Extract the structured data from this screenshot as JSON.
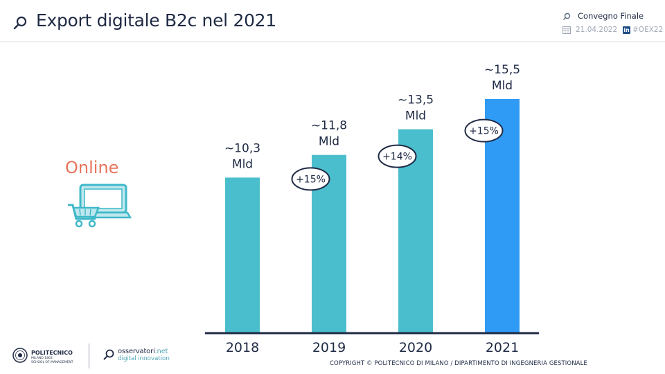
{
  "header": {
    "title": "Export digitale B2c nel 2021",
    "event": "Convegno Finale",
    "date": "21.04.2022",
    "linkedin": "in",
    "hashtag": "#OEX22"
  },
  "side": {
    "label": "Online",
    "icon": "laptop-shopping-cart-icon"
  },
  "chart_data": {
    "type": "bar",
    "title": "",
    "categories": [
      "2018",
      "2019",
      "2020",
      "2021"
    ],
    "values": [
      10.3,
      11.8,
      13.5,
      15.5
    ],
    "value_labels": [
      [
        "~10,3",
        "Mld"
      ],
      [
        "~11,8",
        "Mld"
      ],
      [
        "~13,5",
        "Mld"
      ],
      [
        "~15,5",
        "Mld"
      ]
    ],
    "growth_labels": [
      "+15%",
      "+14%",
      "+15%"
    ],
    "xlabel": "",
    "ylabel": "",
    "unit": "Mld",
    "colors": [
      "#4bbecd",
      "#4bbecd",
      "#4bbecd",
      "#2f9bf5"
    ],
    "baseline_color": "#1f2a44",
    "ylim": [
      0,
      15.5
    ]
  },
  "footer": {
    "polimi_name": "POLITECNICO",
    "polimi_sub1": "MILANO 1863",
    "polimi_sub2": "SCHOOL OF MANAGEMENT",
    "oss_name": "osservatori",
    "oss_net": ".net",
    "oss_sub": "digital innovation",
    "copyright": "COPYRIGHT © POLITECNICO  DI MILANO / DIPARTIMENTO  DI INGEGNERIA  GESTIONALE"
  }
}
